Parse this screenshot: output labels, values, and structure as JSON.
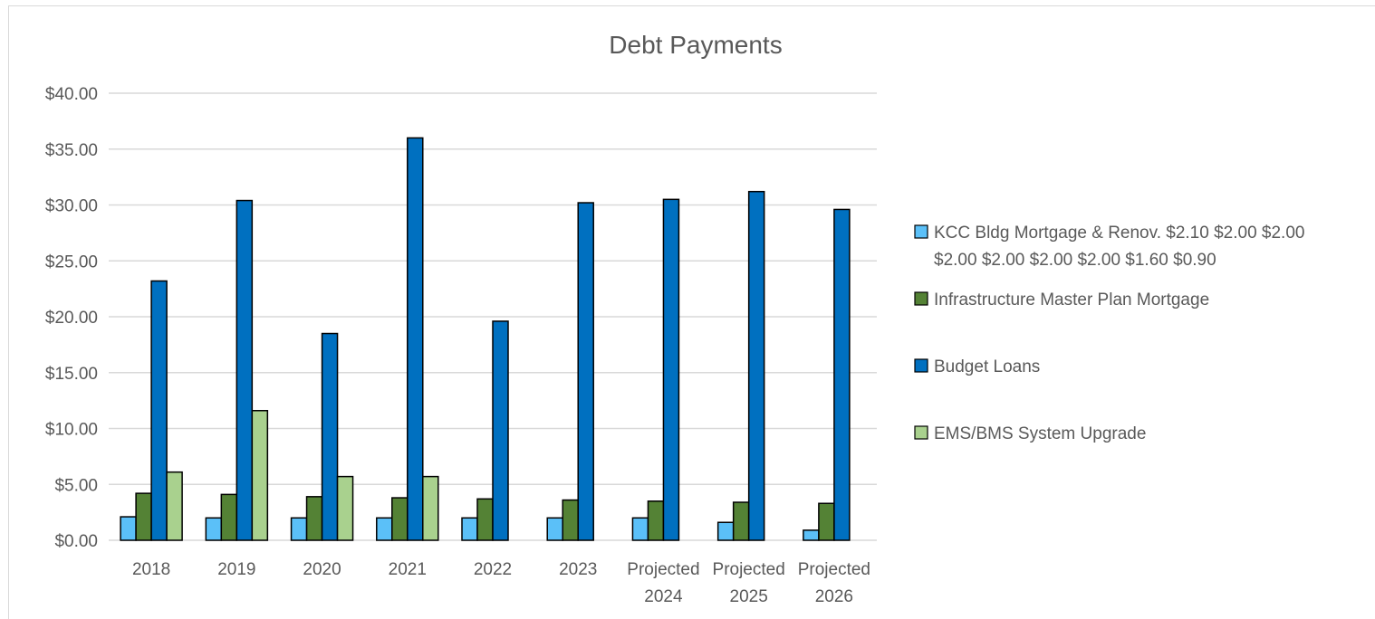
{
  "chart_data": {
    "type": "bar",
    "title": "Debt Payments",
    "categories": [
      [
        "2018"
      ],
      [
        "2019"
      ],
      [
        "2020"
      ],
      [
        "2021"
      ],
      [
        "2022"
      ],
      [
        "2023"
      ],
      [
        "Projected",
        "2024"
      ],
      [
        "Projected",
        "2025"
      ],
      [
        "Projected",
        "2026"
      ]
    ],
    "ylim": [
      0,
      40
    ],
    "ytick_labels": [
      "$0.00",
      "$5.00",
      "$10.00",
      "$15.00",
      "$20.00",
      "$25.00",
      "$30.00",
      "$35.00",
      "$40.00"
    ],
    "grid": true,
    "legend_position": "right",
    "series": [
      {
        "name_lines": [
          "KCC Bldg Mortgage & Renov. $2.10  $2.00  $2.00",
          "$2.00  $2.00  $2.00  $2.00  $1.60  $0.90"
        ],
        "color": "#5bc0f8",
        "values": [
          2.1,
          2.0,
          2.0,
          2.0,
          2.0,
          2.0,
          2.0,
          1.6,
          0.9
        ]
      },
      {
        "name_lines": [
          "Infrastructure Master Plan Mortgage"
        ],
        "color": "#548235",
        "values": [
          4.2,
          4.1,
          3.9,
          3.8,
          3.7,
          3.6,
          3.5,
          3.4,
          3.3
        ]
      },
      {
        "name_lines": [
          "Budget Loans"
        ],
        "color": "#0070c0",
        "values": [
          23.2,
          30.4,
          18.5,
          36.0,
          19.6,
          30.2,
          30.5,
          31.2,
          29.6
        ]
      },
      {
        "name_lines": [
          "EMS/BMS System Upgrade"
        ],
        "color": "#a9d18e",
        "values": [
          6.1,
          11.6,
          5.7,
          5.7,
          null,
          null,
          null,
          null,
          null
        ]
      }
    ]
  }
}
